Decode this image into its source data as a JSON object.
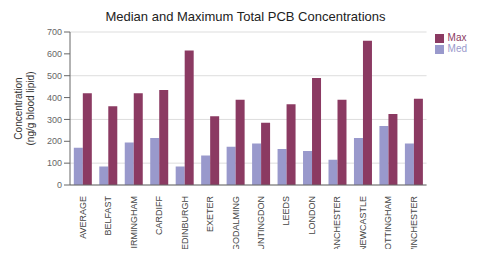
{
  "chart_data": {
    "type": "bar",
    "title": "Median and Maximum Total PCB Concentrations",
    "categories": [
      "AVERAGE",
      "BELFAST",
      "BIRMINGHAM",
      "CARDIFF",
      "EDINBURGH",
      "EXETER",
      "GODALMING",
      "HUNTINGDON",
      "LEEDS",
      "LONDON",
      "MANCHESTER",
      "NEWCASTLE",
      "NOTTINGHAM",
      "WINCHESTER"
    ],
    "series": [
      {
        "name": "Med",
        "color": "#9999cc",
        "values": [
          170,
          85,
          195,
          215,
          85,
          135,
          175,
          190,
          165,
          155,
          115,
          215,
          270,
          190
        ]
      },
      {
        "name": "Max",
        "color": "#8b3a62",
        "values": [
          420,
          360,
          420,
          435,
          615,
          315,
          390,
          285,
          370,
          490,
          390,
          660,
          325,
          395
        ]
      }
    ],
    "ylabel": "Concentration\n(ng/g blood lipid)",
    "ylim": [
      0,
      700
    ],
    "yticks": [
      0,
      100,
      200,
      300,
      400,
      500,
      600,
      700
    ],
    "grid": true,
    "legend": "upper right"
  }
}
